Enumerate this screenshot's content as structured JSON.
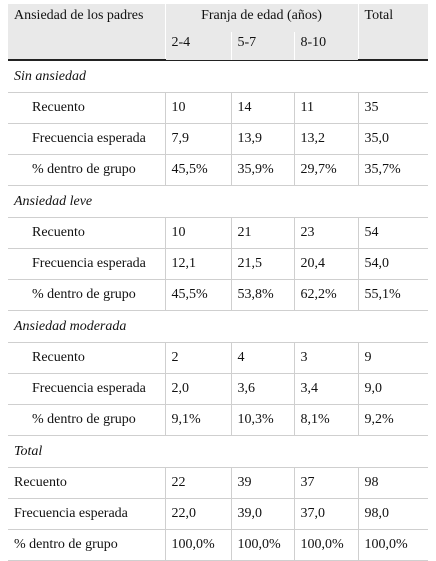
{
  "header": {
    "row_label": "Ansiedad de los padres",
    "band": "Franja de edad (años)",
    "total": "Total",
    "ages": [
      "2-4",
      "5-7",
      "8-10"
    ]
  },
  "groups": [
    {
      "title": "Sin ansiedad",
      "rows": [
        {
          "label": "Recuento",
          "values": [
            "10",
            "14",
            "11",
            "35"
          ]
        },
        {
          "label": "Frecuencia esperada",
          "values": [
            "7,9",
            "13,9",
            "13,2",
            "35,0"
          ]
        },
        {
          "label": "% dentro de grupo",
          "values": [
            "45,5%",
            "35,9%",
            "29,7%",
            "35,7%"
          ]
        }
      ]
    },
    {
      "title": "Ansiedad leve",
      "rows": [
        {
          "label": "Recuento",
          "values": [
            "10",
            "21",
            "23",
            "54"
          ]
        },
        {
          "label": "Frecuencia esperada",
          "values": [
            "12,1",
            "21,5",
            "20,4",
            "54,0"
          ]
        },
        {
          "label": "% dentro de grupo",
          "values": [
            "45,5%",
            "53,8%",
            "62,2%",
            "55,1%"
          ]
        }
      ]
    },
    {
      "title": "Ansiedad moderada",
      "rows": [
        {
          "label": "Recuento",
          "values": [
            "2",
            "4",
            "3",
            "9"
          ]
        },
        {
          "label": "Frecuencia esperada",
          "values": [
            "2,0",
            "3,6",
            "3,4",
            "9,0"
          ]
        },
        {
          "label": "% dentro de grupo",
          "values": [
            "9,1%",
            "10,3%",
            "8,1%",
            "9,2%"
          ]
        }
      ]
    },
    {
      "title": "Total",
      "rows": [
        {
          "label": "Recuento",
          "values": [
            "22",
            "39",
            "37",
            "98"
          ]
        },
        {
          "label": "Frecuencia esperada",
          "values": [
            "22,0",
            "39,0",
            "37,0",
            "98,0"
          ]
        },
        {
          "label": "% dentro de grupo",
          "values": [
            "100,0%",
            "100,0%",
            "100,0%",
            "100,0%"
          ]
        }
      ]
    }
  ]
}
